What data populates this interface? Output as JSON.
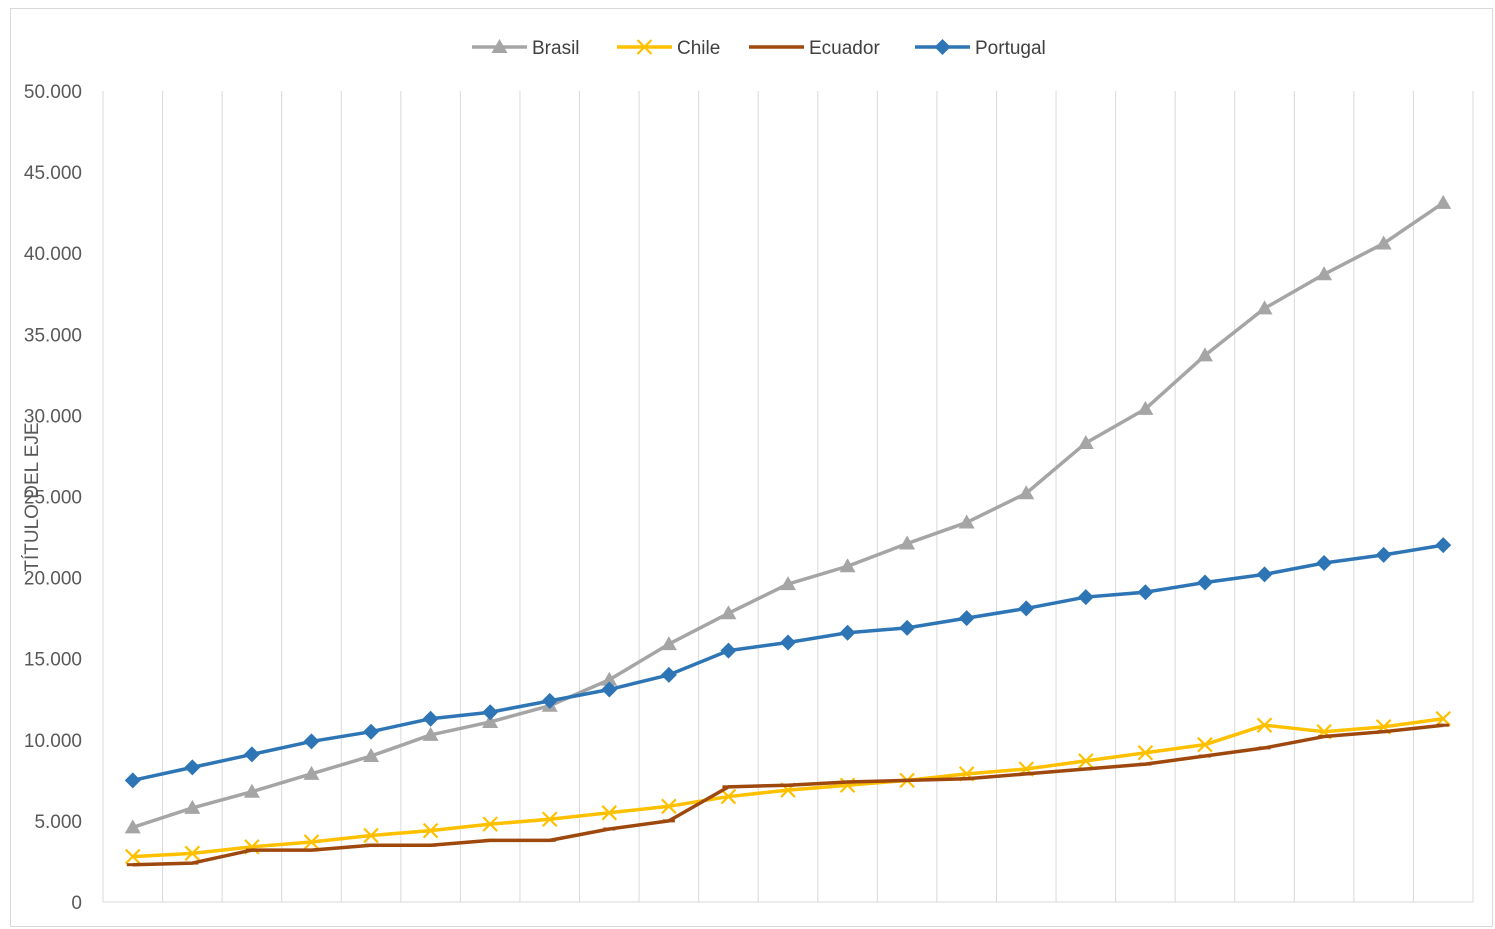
{
  "chart_data": {
    "type": "line",
    "title": "",
    "xlabel": "",
    "ylabel": "TÍTULO DEL EJE",
    "ylim": [
      0,
      50000
    ],
    "yticks": [
      0,
      5000,
      10000,
      15000,
      20000,
      25000,
      30000,
      35000,
      40000,
      45000,
      50000
    ],
    "ytick_labels": [
      "0",
      "5.000",
      "10.000",
      "15.000",
      "20.000",
      "25.000",
      "30.000",
      "35.000",
      "40.000",
      "45.000",
      "50.000"
    ],
    "grid": "vertical",
    "legend_position": "top",
    "series": [
      {
        "name": "Brasil",
        "color": "#a5a5a5",
        "marker": "triangle",
        "values": [
          4600,
          5800,
          6800,
          7900,
          9000,
          10300,
          11100,
          12100,
          13700,
          15900,
          17800,
          19600,
          20700,
          22100,
          23400,
          25200,
          28300,
          30400,
          33700,
          36600,
          38700,
          40600,
          43100
        ]
      },
      {
        "name": "Chile",
        "color": "#ffc000",
        "marker": "x",
        "values": [
          2800,
          3000,
          3400,
          3700,
          4100,
          4400,
          4800,
          5100,
          5500,
          5900,
          6500,
          6900,
          7200,
          7500,
          7900,
          8200,
          8700,
          9200,
          9700,
          10900,
          10500,
          10800,
          11300
        ]
      },
      {
        "name": "Ecuador",
        "color": "#9e480e",
        "marker": "dash",
        "values": [
          2300,
          2400,
          3200,
          3200,
          3500,
          3500,
          3800,
          3800,
          4500,
          5000,
          7100,
          7200,
          7400,
          7500,
          7600,
          7900,
          8200,
          8500,
          9000,
          9500,
          10200,
          10500,
          10900
        ]
      },
      {
        "name": "Portugal",
        "color": "#2e75b6",
        "marker": "diamond",
        "values": [
          7500,
          8300,
          9100,
          9900,
          10500,
          11300,
          11700,
          12400,
          13100,
          14000,
          15500,
          16000,
          16600,
          16900,
          17500,
          18100,
          18800,
          19100,
          19700,
          20200,
          20900,
          21400,
          22000
        ]
      }
    ]
  }
}
